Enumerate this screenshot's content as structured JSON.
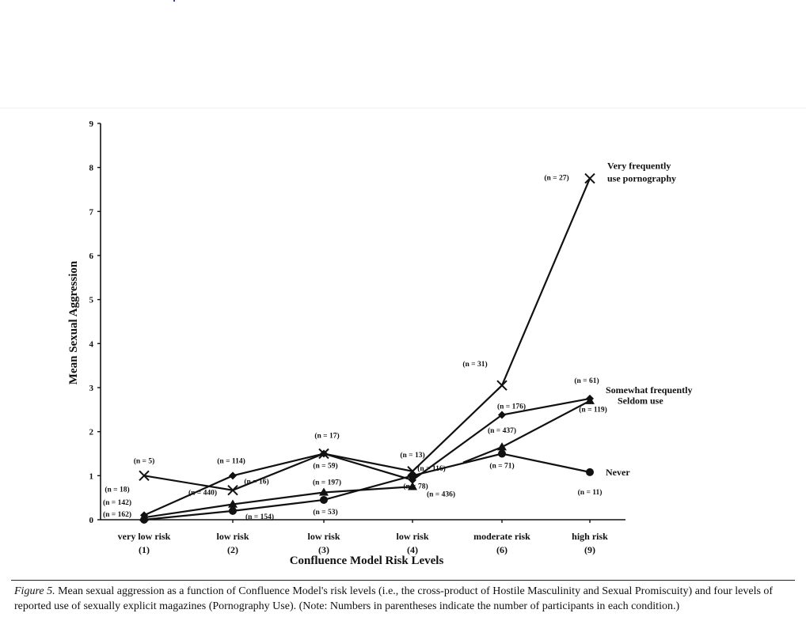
{
  "chart_data": {
    "type": "line",
    "title": "",
    "xlabel": "Confluence Model Risk Levels",
    "ylabel": "Mean Sexual Aggression",
    "ylim": [
      0,
      9
    ],
    "yticks": [
      0,
      1,
      2,
      3,
      4,
      5,
      6,
      7,
      8,
      9
    ],
    "categories": [
      {
        "label": "very low risk",
        "code": "(1)"
      },
      {
        "label": "low risk",
        "code": "(2)"
      },
      {
        "label": "low risk",
        "code": "(3)"
      },
      {
        "label": "low risk",
        "code": "(4)"
      },
      {
        "label": "moderate risk",
        "code": "(6)"
      },
      {
        "label": "high risk",
        "code": "(9)"
      }
    ],
    "grid": false,
    "legend": "direct labels at right end of lines",
    "series": [
      {
        "name": "Very frequently use pornography",
        "name_lines": [
          "Very frequently",
          "use pornography"
        ],
        "marker": "x",
        "values": [
          1.0,
          0.67,
          1.5,
          1.1,
          3.05,
          7.75
        ],
        "n_labels": [
          "(n = 5)",
          "(n = 16)",
          "(n = 17)",
          "(n = 13)",
          "(n = 31)",
          "(n = 27)"
        ]
      },
      {
        "name": "Somewhat frequently",
        "name_lines": [
          "Somewhat frequently"
        ],
        "marker": "diamond",
        "values": [
          0.1,
          1.0,
          1.5,
          0.9,
          2.38,
          2.75
        ],
        "n_labels": [
          "(n = 18)",
          "(n = 114)",
          "(n = 59)",
          "(n = 116)",
          "(n = 176)",
          "(n = 61)"
        ]
      },
      {
        "name": "Seldom use",
        "name_lines": [
          "Seldom use"
        ],
        "marker": "triangle",
        "values": [
          0.05,
          0.35,
          0.62,
          0.75,
          1.65,
          2.7
        ],
        "n_labels": [
          "(n = 142)",
          "(n = 440)",
          "(n = 197)",
          "(n = 436)",
          "(n = 437)",
          "(n = 119)"
        ]
      },
      {
        "name": "Never",
        "name_lines": [
          "Never"
        ],
        "marker": "circle",
        "values": [
          0.0,
          0.2,
          0.45,
          1.0,
          1.5,
          1.08
        ],
        "n_labels": [
          "(n = 162)",
          "(n = 154)",
          "(n = 53)",
          "(n = 78)",
          "(n = 71)",
          "(n = 11)"
        ]
      }
    ]
  },
  "caption": {
    "lead": "Figure 5.",
    "text": " Mean sexual aggression as a function of Confluence Model's risk levels (i.e., the cross-product of Hostile Masculinity and Sexual Promiscuity) and four levels of reported use of sexually explicit magazines (Pornography Use). (Note: Numbers in parentheses indicate the number of participants in each condition.)"
  }
}
